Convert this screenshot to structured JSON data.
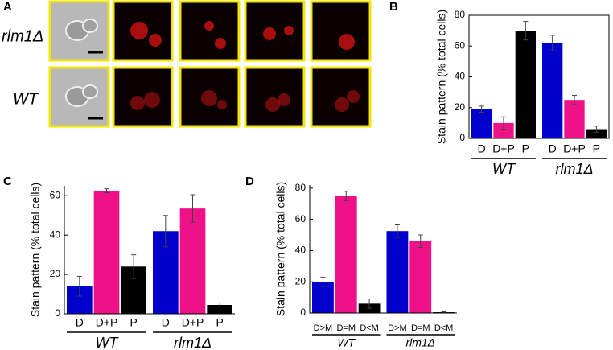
{
  "panel_a": {
    "label": "A",
    "rows": [
      "rlm1Δ",
      "WT"
    ]
  },
  "chart_data": [
    {
      "type": "bar",
      "panel": "B",
      "ylabel": "Stain pattern (% total cells)",
      "ylim": [
        0,
        80
      ],
      "yticks": [
        0,
        20,
        40,
        60,
        80
      ],
      "colors": [
        "#0000cc",
        "#ee1188",
        "#000000"
      ],
      "groups": [
        {
          "name": "WT",
          "categories": [
            "D",
            "D+P",
            "P"
          ],
          "values": [
            19,
            10,
            70
          ],
          "errors": [
            2,
            4,
            6
          ]
        },
        {
          "name": "rlm1Δ",
          "categories": [
            "D",
            "D+P",
            "P"
          ],
          "values": [
            62,
            25,
            6
          ],
          "errors": [
            5,
            3,
            2
          ]
        }
      ]
    },
    {
      "type": "bar",
      "panel": "C",
      "ylabel": "Stain pattern (% total cells)",
      "ylim": [
        0,
        65
      ],
      "yticks": [
        0,
        20,
        40,
        60
      ],
      "colors": [
        "#0000cc",
        "#ee1188",
        "#000000"
      ],
      "groups": [
        {
          "name": "WT",
          "categories": [
            "D",
            "D+P",
            "P"
          ],
          "values": [
            14,
            62.5,
            24
          ],
          "errors": [
            5,
            1,
            6
          ]
        },
        {
          "name": "rlm1Δ",
          "categories": [
            "D",
            "D+P",
            "P"
          ],
          "values": [
            42,
            53.5,
            4.5
          ],
          "errors": [
            8,
            7,
            1
          ]
        }
      ]
    },
    {
      "type": "bar",
      "panel": "D",
      "ylabel": "Stain pattern (% total cells)",
      "ylim": [
        0,
        82
      ],
      "yticks": [
        0,
        20,
        40,
        60,
        80
      ],
      "colors": [
        "#0000cc",
        "#ee1188",
        "#000000"
      ],
      "groups": [
        {
          "name": "WT",
          "categories": [
            "D>M",
            "D=M",
            "D<M"
          ],
          "values": [
            20,
            75,
            6
          ],
          "errors": [
            3,
            3,
            3
          ]
        },
        {
          "name": "rlm1Δ",
          "categories": [
            "D>M",
            "D=M",
            "D<M"
          ],
          "values": [
            52.5,
            46,
            0.5
          ],
          "errors": [
            4,
            4,
            0.3
          ]
        }
      ]
    }
  ]
}
